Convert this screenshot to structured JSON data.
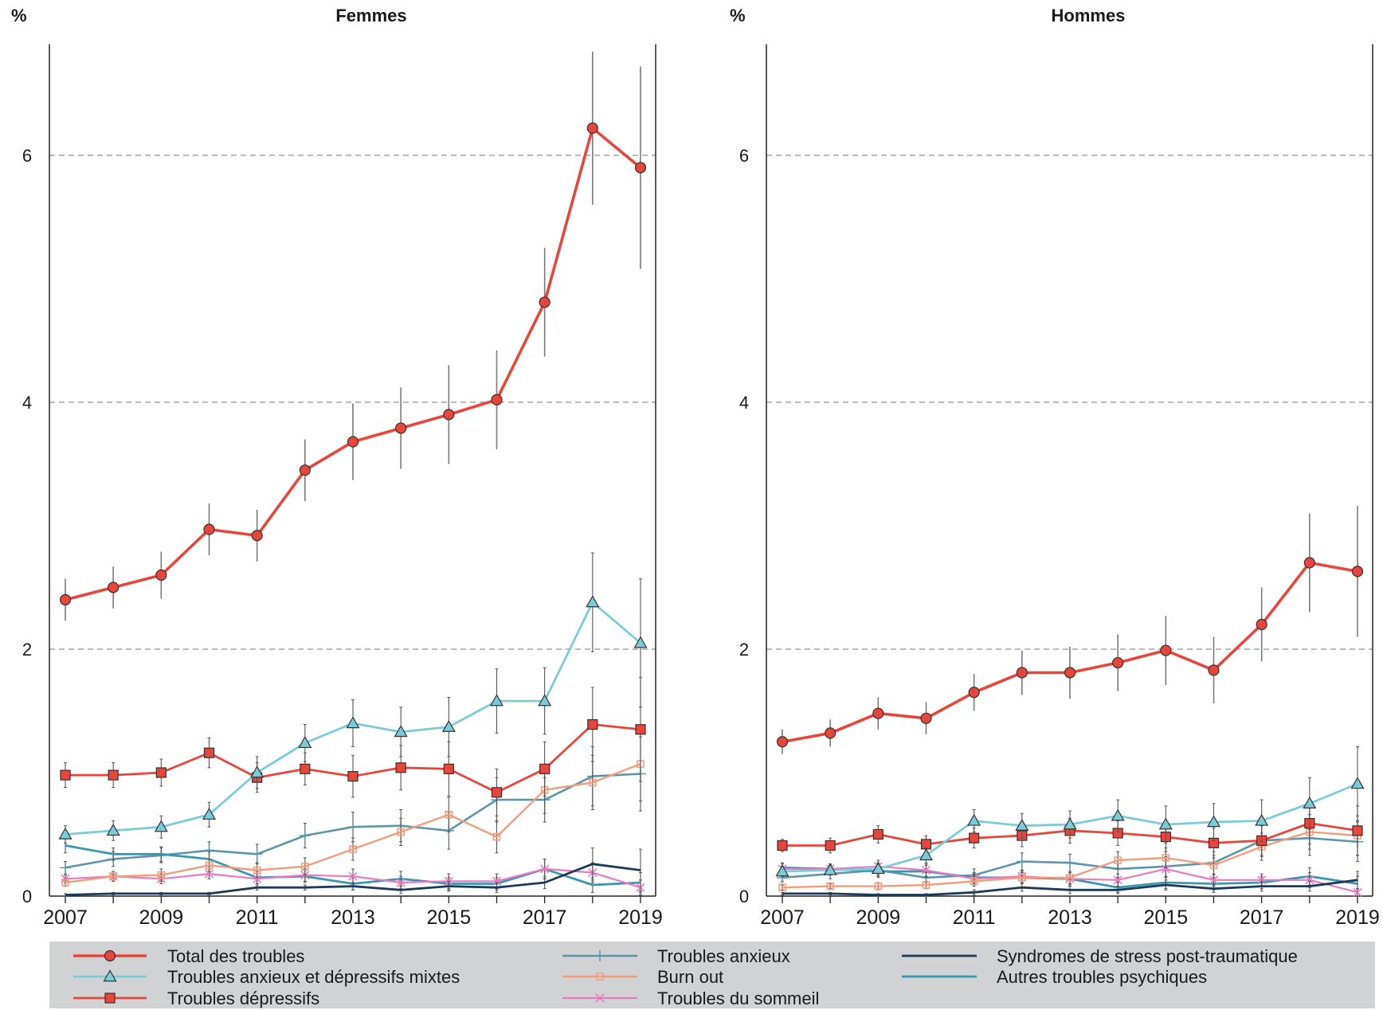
{
  "colors": {
    "total": "#e8453c",
    "mixtes": "#7ecbd8",
    "depressifs": "#e8453c",
    "anxieux": "#5f95a6",
    "burnout": "#f29d7f",
    "sommeil": "#e77bbf",
    "stress": "#1d3b56",
    "autres": "#3a97ad",
    "legend_bg": "#d1d2d4",
    "grid": "#777777",
    "error_bar": "#7a7a7a"
  },
  "chart_data": [
    {
      "type": "line",
      "title": "Femmes",
      "ylabel": "%",
      "ylim": [
        0,
        6.9
      ],
      "yticks": [
        "0",
        "2",
        "4",
        "6"
      ],
      "xticks": [
        "2007",
        "2009",
        "2011",
        "2013",
        "2015",
        "2017",
        "2019"
      ],
      "x": [
        2007,
        2008,
        2009,
        2010,
        2011,
        2012,
        2013,
        2014,
        2015,
        2016,
        2017,
        2018,
        2019
      ],
      "grid": "dashed horizontal at 2, 4, 6",
      "series": [
        {
          "name": "Total des troubles",
          "key": "total",
          "values": [
            2.4,
            2.5,
            2.6,
            2.97,
            2.92,
            3.45,
            3.68,
            3.79,
            3.9,
            4.02,
            4.81,
            6.22,
            5.9
          ],
          "err": [
            0.17,
            0.17,
            0.19,
            0.21,
            0.21,
            0.25,
            0.31,
            0.33,
            0.4,
            0.4,
            0.44,
            0.62,
            0.82
          ]
        },
        {
          "name": "Troubles anxieux et dépressifs mixtes",
          "key": "mixtes",
          "values": [
            0.5,
            0.53,
            0.56,
            0.66,
            1.0,
            1.24,
            1.4,
            1.33,
            1.37,
            1.58,
            1.58,
            2.38,
            2.05
          ],
          "err": [
            0.07,
            0.08,
            0.09,
            0.1,
            0.13,
            0.15,
            0.19,
            0.2,
            0.24,
            0.26,
            0.27,
            0.4,
            0.52
          ]
        },
        {
          "name": "Troubles dépressifs",
          "key": "depressifs",
          "values": [
            0.98,
            0.98,
            1.0,
            1.16,
            0.96,
            1.03,
            0.97,
            1.04,
            1.03,
            0.84,
            1.03,
            1.39,
            1.35
          ],
          "err": [
            0.1,
            0.1,
            0.11,
            0.12,
            0.12,
            0.13,
            0.17,
            0.18,
            0.22,
            0.19,
            0.22,
            0.3,
            0.42
          ]
        },
        {
          "name": "Troubles anxieux",
          "key": "anxieux",
          "values": [
            0.23,
            0.3,
            0.33,
            0.37,
            0.34,
            0.49,
            0.56,
            0.57,
            0.53,
            0.78,
            0.78,
            0.97,
            0.99
          ],
          "err": [
            0.05,
            0.06,
            0.06,
            0.07,
            0.08,
            0.1,
            0.12,
            0.13,
            0.15,
            0.18,
            0.18,
            0.24,
            0.3
          ]
        },
        {
          "name": "Burn out",
          "key": "burnout",
          "values": [
            0.11,
            0.16,
            0.17,
            0.25,
            0.21,
            0.24,
            0.38,
            0.52,
            0.66,
            0.48,
            0.86,
            0.92,
            1.07
          ],
          "err": [
            0.03,
            0.04,
            0.05,
            0.05,
            0.06,
            0.07,
            0.09,
            0.11,
            0.14,
            0.13,
            0.19,
            0.22,
            0.3
          ]
        },
        {
          "name": "Troubles du sommeil",
          "key": "sommeil",
          "values": [
            0.14,
            0.16,
            0.14,
            0.18,
            0.14,
            0.17,
            0.16,
            0.11,
            0.12,
            0.12,
            0.22,
            0.19,
            0.07
          ],
          "err": [
            0.03,
            0.04,
            0.04,
            0.04,
            0.04,
            0.05,
            0.06,
            0.05,
            0.06,
            0.06,
            0.08,
            0.08,
            0.06
          ]
        },
        {
          "name": "Syndromes de stress post-traumatique",
          "key": "stress",
          "values": [
            0.01,
            0.02,
            0.02,
            0.02,
            0.07,
            0.07,
            0.08,
            0.05,
            0.08,
            0.07,
            0.11,
            0.26,
            0.21
          ],
          "err": [
            0.01,
            0.01,
            0.01,
            0.01,
            0.02,
            0.02,
            0.03,
            0.03,
            0.04,
            0.04,
            0.05,
            0.13,
            0.17
          ]
        },
        {
          "name": "Autres troubles psychiques",
          "key": "autres",
          "values": [
            0.41,
            0.34,
            0.34,
            0.3,
            0.15,
            0.16,
            0.1,
            0.14,
            0.1,
            0.1,
            0.22,
            0.09,
            0.11
          ],
          "err": [
            0.06,
            0.05,
            0.06,
            0.06,
            0.05,
            0.05,
            0.05,
            0.06,
            0.05,
            0.05,
            0.08,
            0.06,
            0.08
          ]
        }
      ]
    },
    {
      "type": "line",
      "title": "Hommes",
      "ylabel": "%",
      "ylim": [
        0,
        6.9
      ],
      "yticks": [
        "0",
        "2",
        "4",
        "6"
      ],
      "xticks": [
        "2007",
        "2009",
        "2011",
        "2013",
        "2015",
        "2017",
        "2019"
      ],
      "x": [
        2007,
        2008,
        2009,
        2010,
        2011,
        2012,
        2013,
        2014,
        2015,
        2016,
        2017,
        2018,
        2019
      ],
      "grid": "dashed horizontal at 2, 4, 6",
      "series": [
        {
          "name": "Total des troubles",
          "key": "total",
          "values": [
            1.25,
            1.32,
            1.48,
            1.44,
            1.65,
            1.81,
            1.81,
            1.89,
            1.99,
            1.83,
            2.2,
            2.7,
            2.63
          ],
          "err": [
            0.1,
            0.11,
            0.13,
            0.13,
            0.15,
            0.18,
            0.21,
            0.23,
            0.28,
            0.27,
            0.3,
            0.4,
            0.53
          ]
        },
        {
          "name": "Troubles anxieux et dépressifs mixtes",
          "key": "mixtes",
          "values": [
            0.2,
            0.21,
            0.22,
            0.33,
            0.61,
            0.57,
            0.58,
            0.65,
            0.58,
            0.6,
            0.61,
            0.75,
            0.91
          ],
          "err": [
            0.04,
            0.04,
            0.05,
            0.06,
            0.09,
            0.1,
            0.11,
            0.13,
            0.15,
            0.15,
            0.17,
            0.21,
            0.3
          ]
        },
        {
          "name": "Troubles dépressifs",
          "key": "depressifs",
          "values": [
            0.41,
            0.41,
            0.5,
            0.42,
            0.47,
            0.49,
            0.53,
            0.51,
            0.48,
            0.43,
            0.45,
            0.59,
            0.53
          ],
          "err": [
            0.05,
            0.06,
            0.07,
            0.07,
            0.08,
            0.09,
            0.1,
            0.1,
            0.12,
            0.12,
            0.13,
            0.17,
            0.2
          ]
        },
        {
          "name": "Troubles anxieux",
          "key": "anxieux",
          "values": [
            0.15,
            0.18,
            0.21,
            0.15,
            0.17,
            0.28,
            0.27,
            0.22,
            0.24,
            0.27,
            0.45,
            0.47,
            0.44
          ],
          "err": [
            0.03,
            0.04,
            0.05,
            0.04,
            0.05,
            0.07,
            0.07,
            0.07,
            0.08,
            0.09,
            0.12,
            0.14,
            0.16
          ]
        },
        {
          "name": "Burn out",
          "key": "burnout",
          "values": [
            0.07,
            0.08,
            0.08,
            0.09,
            0.12,
            0.15,
            0.15,
            0.29,
            0.31,
            0.25,
            0.4,
            0.52,
            0.49
          ],
          "err": [
            0.02,
            0.02,
            0.03,
            0.03,
            0.04,
            0.04,
            0.05,
            0.07,
            0.08,
            0.08,
            0.11,
            0.14,
            0.16
          ]
        },
        {
          "name": "Troubles du sommeil",
          "key": "sommeil",
          "values": [
            0.22,
            0.22,
            0.24,
            0.21,
            0.14,
            0.16,
            0.14,
            0.13,
            0.22,
            0.13,
            0.13,
            0.13,
            0.03
          ],
          "err": [
            0.04,
            0.04,
            0.05,
            0.05,
            0.04,
            0.05,
            0.05,
            0.05,
            0.07,
            0.05,
            0.05,
            0.06,
            0.03
          ]
        },
        {
          "name": "Syndromes de stress post-traumatique",
          "key": "stress",
          "values": [
            0.02,
            0.02,
            0.01,
            0.01,
            0.03,
            0.07,
            0.05,
            0.05,
            0.09,
            0.06,
            0.08,
            0.08,
            0.13
          ],
          "err": [
            0.01,
            0.01,
            0.01,
            0.01,
            0.02,
            0.03,
            0.03,
            0.03,
            0.04,
            0.03,
            0.04,
            0.04,
            0.07
          ]
        },
        {
          "name": "Autres troubles psychiques",
          "key": "autres",
          "values": [
            0.23,
            0.22,
            0.2,
            0.2,
            0.15,
            0.15,
            0.14,
            0.07,
            0.11,
            0.1,
            0.11,
            0.16,
            0.1
          ],
          "err": [
            0.04,
            0.04,
            0.05,
            0.05,
            0.04,
            0.05,
            0.05,
            0.04,
            0.05,
            0.05,
            0.05,
            0.07,
            0.06
          ]
        }
      ]
    }
  ],
  "legend": [
    {
      "key": "total",
      "label": "Total des troubles"
    },
    {
      "key": "mixtes",
      "label": "Troubles anxieux et dépressifs mixtes"
    },
    {
      "key": "depressifs",
      "label": "Troubles dépressifs"
    },
    {
      "key": "anxieux",
      "label": "Troubles anxieux"
    },
    {
      "key": "burnout",
      "label": "Burn out"
    },
    {
      "key": "sommeil",
      "label": "Troubles du sommeil"
    },
    {
      "key": "stress",
      "label": "Syndromes de stress post-traumatique"
    },
    {
      "key": "autres",
      "label": "Autres troubles psychiques"
    }
  ]
}
